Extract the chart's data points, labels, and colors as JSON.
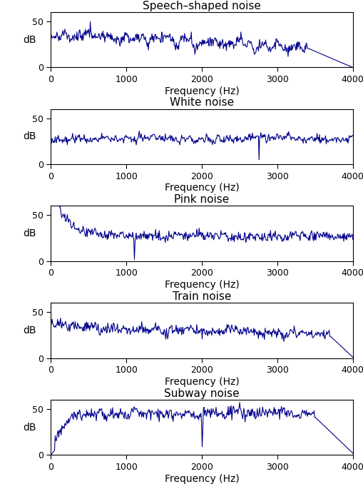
{
  "titles": [
    "Speech–shaped noise",
    "White noise",
    "Pink noise",
    "Train noise",
    "Subway noise"
  ],
  "xlabel": "Frequency (Hz)",
  "ylabel": "dB",
  "xlim": [
    0,
    4000
  ],
  "ylim": [
    0,
    60
  ],
  "yticks": [
    0,
    50
  ],
  "xticks": [
    0,
    1000,
    2000,
    3000,
    4000
  ],
  "line_color": "#00008B",
  "line_width": 0.8,
  "figsize": [
    5.1,
    6.78
  ],
  "dpi": 100,
  "seed": 12345
}
